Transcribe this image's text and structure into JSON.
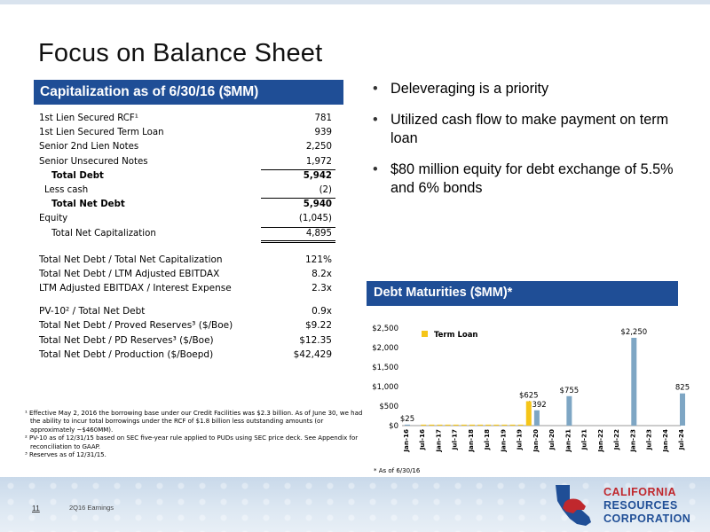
{
  "title": "Focus on Balance Sheet",
  "capitalization": {
    "header": "Capitalization as of 6/30/16 ($MM)",
    "rows": [
      {
        "label": "1st Lien Secured RCF¹",
        "value": "781"
      },
      {
        "label": "1st Lien Secured Term Loan",
        "value": "939"
      },
      {
        "label": "Senior 2nd Lien Notes",
        "value": "2,250"
      },
      {
        "label": "Senior Unsecured Notes",
        "value": "1,972"
      },
      {
        "label": "Total Debt",
        "value": "5,942"
      },
      {
        "label": "Less cash",
        "value": "(2)"
      },
      {
        "label": "Total Net Debt",
        "value": "5,940"
      },
      {
        "label": "Equity",
        "value": "(1,045)"
      },
      {
        "label": "Total Net Capitalization",
        "value": "4,895"
      }
    ],
    "ratios1": [
      {
        "label": "Total Net Debt / Total Net Capitalization",
        "value": "121%"
      },
      {
        "label": "Total Net Debt / LTM Adjusted EBITDAX",
        "value": "8.2x"
      },
      {
        "label": "LTM Adjusted EBITDAX / Interest Expense",
        "value": "2.3x"
      }
    ],
    "ratios2": [
      {
        "label": "PV-10² / Total Net Debt",
        "value": "0.9x"
      },
      {
        "label": "Total Net Debt / Proved Reserves³ ($/Boe)",
        "value": "$9.22"
      },
      {
        "label": "Total Net Debt / PD Reserves³ ($/Boe)",
        "value": "$12.35"
      },
      {
        "label": "Total Net Debt / Production ($/Boepd)",
        "value": "$42,429"
      }
    ]
  },
  "footnotes": [
    "¹ Effective May 2, 2016 the borrowing base under our Credit Facilities was $2.3 billion. As of June 30, we had the ability to incur total borrowings under the RCF of $1.8 billion less outstanding amounts (or approximately ~$460MM).",
    "² PV-10 as of 12/31/15 based on SEC five-year rule applied to PUDs using SEC price deck. See Appendix for reconciliation to GAAP.",
    "³ Reserves as of 12/31/15."
  ],
  "bullets": [
    "Deleveraging is a priority",
    "Utilized cash flow to make payment on term loan",
    "$80 million equity for debt exchange of 5.5% and 6% bonds"
  ],
  "debt_maturities": {
    "header": "Debt Maturities ($MM)*",
    "as_of": "* As of 6/30/16"
  },
  "chart_data": {
    "type": "bar",
    "categories": [
      "Jan-16",
      "Jul-16",
      "Jan-17",
      "Jul-17",
      "Jan-18",
      "Jul-18",
      "Jan-19",
      "Jul-19",
      "Jan-20",
      "Jul-20",
      "Jan-21",
      "Jul-21",
      "Jan-22",
      "Jul-22",
      "Jan-23",
      "Jul-23",
      "Jan-24",
      "Jul-24"
    ],
    "series": [
      {
        "name": "",
        "color": "#7ea6c4",
        "points": [
          {
            "category": "Jan-16",
            "value": 25,
            "label": "$25"
          },
          {
            "category": "Jan-20",
            "value": 392,
            "label": "$392"
          },
          {
            "category": "Jan-21",
            "value": 755,
            "label": "$755"
          },
          {
            "category": "Jan-23",
            "value": 2250,
            "label": "$2,250"
          },
          {
            "category": "Jul-24",
            "value": 825,
            "label": "825"
          }
        ]
      },
      {
        "name": "Term Loan",
        "color": "#f5c518",
        "style": "dotted",
        "points": [
          {
            "category": "Jul-16",
            "value": 25
          },
          {
            "category": "Oct-16",
            "value": 25
          },
          {
            "category": "Jan-17",
            "value": 25
          },
          {
            "category": "Apr-17",
            "value": 25
          },
          {
            "category": "Jul-17",
            "value": 25
          },
          {
            "category": "Oct-17",
            "value": 25
          },
          {
            "category": "Jan-18",
            "value": 25
          },
          {
            "category": "Apr-18",
            "value": 25
          },
          {
            "category": "Jul-18",
            "value": 25
          },
          {
            "category": "Oct-18",
            "value": 25
          },
          {
            "category": "Jan-19",
            "value": 25
          },
          {
            "category": "Apr-19",
            "value": 25
          },
          {
            "category": "Jul-19",
            "value": 25
          },
          {
            "category": "Oct-19",
            "value": 625,
            "label": "$625"
          }
        ]
      }
    ],
    "y_ticks": [
      "$0",
      "$500",
      "$1,000",
      "$1,500",
      "$2,000",
      "$2,500"
    ],
    "ylim": [
      0,
      2500
    ],
    "legend": "Term Loan",
    "legend_position": "top-left"
  },
  "footer": {
    "page_number": "11",
    "label": "2Q16 Earnings",
    "logo_lines": [
      "CALIFORNIA",
      "RESOURCES",
      "CORPORATION"
    ]
  },
  "colors": {
    "header_blue": "#1f4e96",
    "bar_blue": "#7ea6c4",
    "term_loan_yellow": "#f5c518",
    "logo_red": "#c0282d"
  }
}
